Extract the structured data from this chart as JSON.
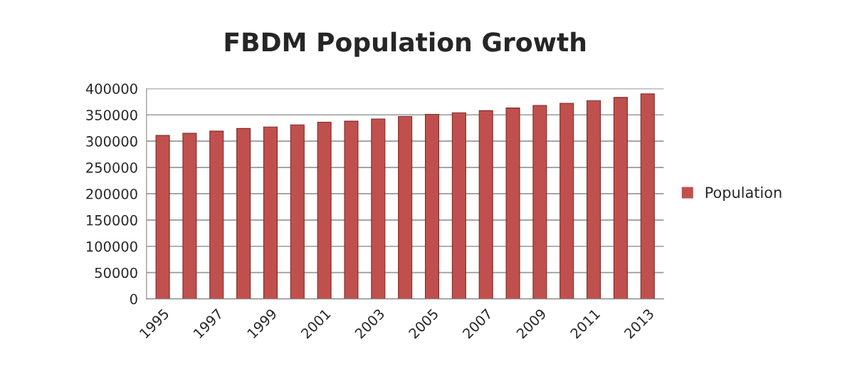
{
  "chart_data": {
    "type": "bar",
    "title": "FBDM Population Growth",
    "categories": [
      "1995",
      null,
      "1997",
      null,
      "1999",
      null,
      "2001",
      null,
      "2003",
      null,
      "2005",
      null,
      "2007",
      null,
      "2009",
      null,
      "2011",
      null,
      "2013"
    ],
    "series": [
      {
        "name": "Population",
        "color": "#c0504d",
        "values": [
          311000,
          315000,
          319000,
          324000,
          327000,
          331000,
          336000,
          338000,
          342000,
          347000,
          351000,
          354000,
          358000,
          363000,
          368000,
          372000,
          377000,
          383000,
          390000
        ]
      }
    ],
    "ylim": [
      0,
      400000
    ],
    "yticks": [
      0,
      50000,
      100000,
      150000,
      200000,
      250000,
      300000,
      350000,
      400000
    ],
    "grid": "y",
    "legend": "right"
  }
}
